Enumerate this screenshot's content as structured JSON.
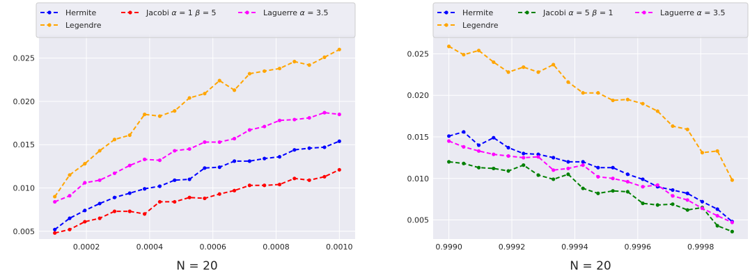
{
  "chart_data": [
    {
      "type": "line",
      "title": "",
      "xlabel": "N = 20",
      "ylabel": "",
      "xlim": [
        5e-05,
        0.00105
      ],
      "ylim": [
        0.0041,
        0.0277
      ],
      "xticks": [
        0.0002,
        0.0004,
        0.0006,
        0.0008,
        0.001
      ],
      "xtick_labels": [
        "0.0002",
        "0.0004",
        "0.0006",
        "0.0008",
        "0.0010"
      ],
      "yticks": [
        0.005,
        0.01,
        0.015,
        0.02,
        0.025
      ],
      "ytick_labels": [
        "0.005",
        "0.010",
        "0.015",
        "0.020",
        "0.025"
      ],
      "grid": true,
      "legend_position": "top",
      "legend_order": [
        0,
        3,
        1,
        2
      ],
      "x": [
        0.0001,
        0.000147,
        0.000195,
        0.000242,
        0.000289,
        0.000337,
        0.000384,
        0.000432,
        0.000479,
        0.000526,
        0.000574,
        0.000621,
        0.000668,
        0.000716,
        0.000763,
        0.000811,
        0.000858,
        0.000905,
        0.000953,
        0.001
      ],
      "series": [
        {
          "name": "Hermite",
          "color": "#0000ff",
          "values": [
            0.0052,
            0.0065,
            0.0074,
            0.0082,
            0.0089,
            0.0094,
            0.0099,
            0.0102,
            0.0109,
            0.011,
            0.0123,
            0.0124,
            0.0131,
            0.0131,
            0.0134,
            0.0136,
            0.0144,
            0.0146,
            0.0147,
            0.0154
          ]
        },
        {
          "name": "Jacobi $\\alpha = 1$ $\\beta = 5$",
          "label_parts": [
            "Jacobi ",
            "α",
            " = 1 ",
            "β",
            " = 5"
          ],
          "color": "#ff0000",
          "values": [
            0.0048,
            0.0052,
            0.0061,
            0.0065,
            0.0073,
            0.0073,
            0.007,
            0.0084,
            0.0084,
            0.0089,
            0.0088,
            0.0093,
            0.0097,
            0.0103,
            0.0103,
            0.0104,
            0.0111,
            0.0109,
            0.0113,
            0.0121
          ]
        },
        {
          "name": "Laguerre $\\alpha = 3.5$",
          "label_parts": [
            "Laguerre ",
            "α",
            " = 3.5"
          ],
          "color": "#ff00ff",
          "values": [
            0.0084,
            0.0091,
            0.0106,
            0.0109,
            0.0117,
            0.0126,
            0.0133,
            0.0132,
            0.0143,
            0.0145,
            0.0153,
            0.0153,
            0.0157,
            0.0167,
            0.0171,
            0.0178,
            0.0179,
            0.0181,
            0.0187,
            0.0185
          ]
        },
        {
          "name": "Legendre",
          "color": "#ffa500",
          "values": [
            0.009,
            0.0115,
            0.0128,
            0.0143,
            0.0156,
            0.0161,
            0.0185,
            0.0183,
            0.0189,
            0.0204,
            0.0209,
            0.0224,
            0.0213,
            0.0232,
            0.0235,
            0.0238,
            0.0246,
            0.0242,
            0.0251,
            0.026
          ]
        }
      ]
    },
    {
      "type": "line",
      "title": "",
      "xlabel": "N = 20",
      "ylabel": "",
      "xlim": [
        0.99895,
        0.99995
      ],
      "ylim": [
        0.0027,
        0.0273
      ],
      "xticks": [
        0.999,
        0.9992,
        0.9994,
        0.9996,
        0.9998
      ],
      "xtick_labels": [
        "0.9990",
        "0.9992",
        "0.9994",
        "0.9996",
        "0.9998"
      ],
      "yticks": [
        0.005,
        0.01,
        0.015,
        0.02,
        0.025
      ],
      "ytick_labels": [
        "0.005",
        "0.010",
        "0.015",
        "0.020",
        "0.025"
      ],
      "grid": true,
      "legend_position": "top",
      "legend_order": [
        0,
        3,
        1,
        2
      ],
      "x": [
        0.999,
        0.999047,
        0.999095,
        0.999142,
        0.999189,
        0.999237,
        0.999284,
        0.999332,
        0.999379,
        0.999426,
        0.999474,
        0.999521,
        0.999568,
        0.999616,
        0.999663,
        0.999711,
        0.999758,
        0.999805,
        0.999853,
        0.9999
      ],
      "series": [
        {
          "name": "Hermite",
          "color": "#0000ff",
          "values": [
            0.0151,
            0.0156,
            0.014,
            0.0149,
            0.0137,
            0.013,
            0.0129,
            0.0125,
            0.012,
            0.012,
            0.0113,
            0.0113,
            0.0105,
            0.0099,
            0.009,
            0.0086,
            0.0082,
            0.0072,
            0.0063,
            0.0048
          ]
        },
        {
          "name": "Jacobi $\\alpha = 5$ $\\beta = 1$",
          "label_parts": [
            "Jacobi ",
            "α",
            " = 5 ",
            "β",
            " = 1"
          ],
          "color": "#008000",
          "values": [
            0.012,
            0.0118,
            0.0113,
            0.0112,
            0.0109,
            0.0116,
            0.0104,
            0.0099,
            0.0105,
            0.0088,
            0.0082,
            0.0085,
            0.0084,
            0.007,
            0.0068,
            0.0069,
            0.0062,
            0.0065,
            0.0043,
            0.0036
          ]
        },
        {
          "name": "Laguerre $\\alpha = 3.5$",
          "label_parts": [
            "Laguerre ",
            "α",
            " = 3.5"
          ],
          "color": "#ff00ff",
          "values": [
            0.0145,
            0.0138,
            0.0133,
            0.0129,
            0.0127,
            0.0125,
            0.0126,
            0.011,
            0.0112,
            0.0116,
            0.0102,
            0.01,
            0.0096,
            0.009,
            0.0092,
            0.0079,
            0.0074,
            0.0064,
            0.0055,
            0.0047
          ]
        },
        {
          "name": "Legendre",
          "color": "#ffa500",
          "values": [
            0.0259,
            0.0249,
            0.0254,
            0.024,
            0.0228,
            0.0234,
            0.0228,
            0.0237,
            0.0216,
            0.0203,
            0.0203,
            0.0194,
            0.0195,
            0.019,
            0.0181,
            0.0163,
            0.0159,
            0.0131,
            0.0133,
            0.0098
          ]
        }
      ]
    }
  ]
}
